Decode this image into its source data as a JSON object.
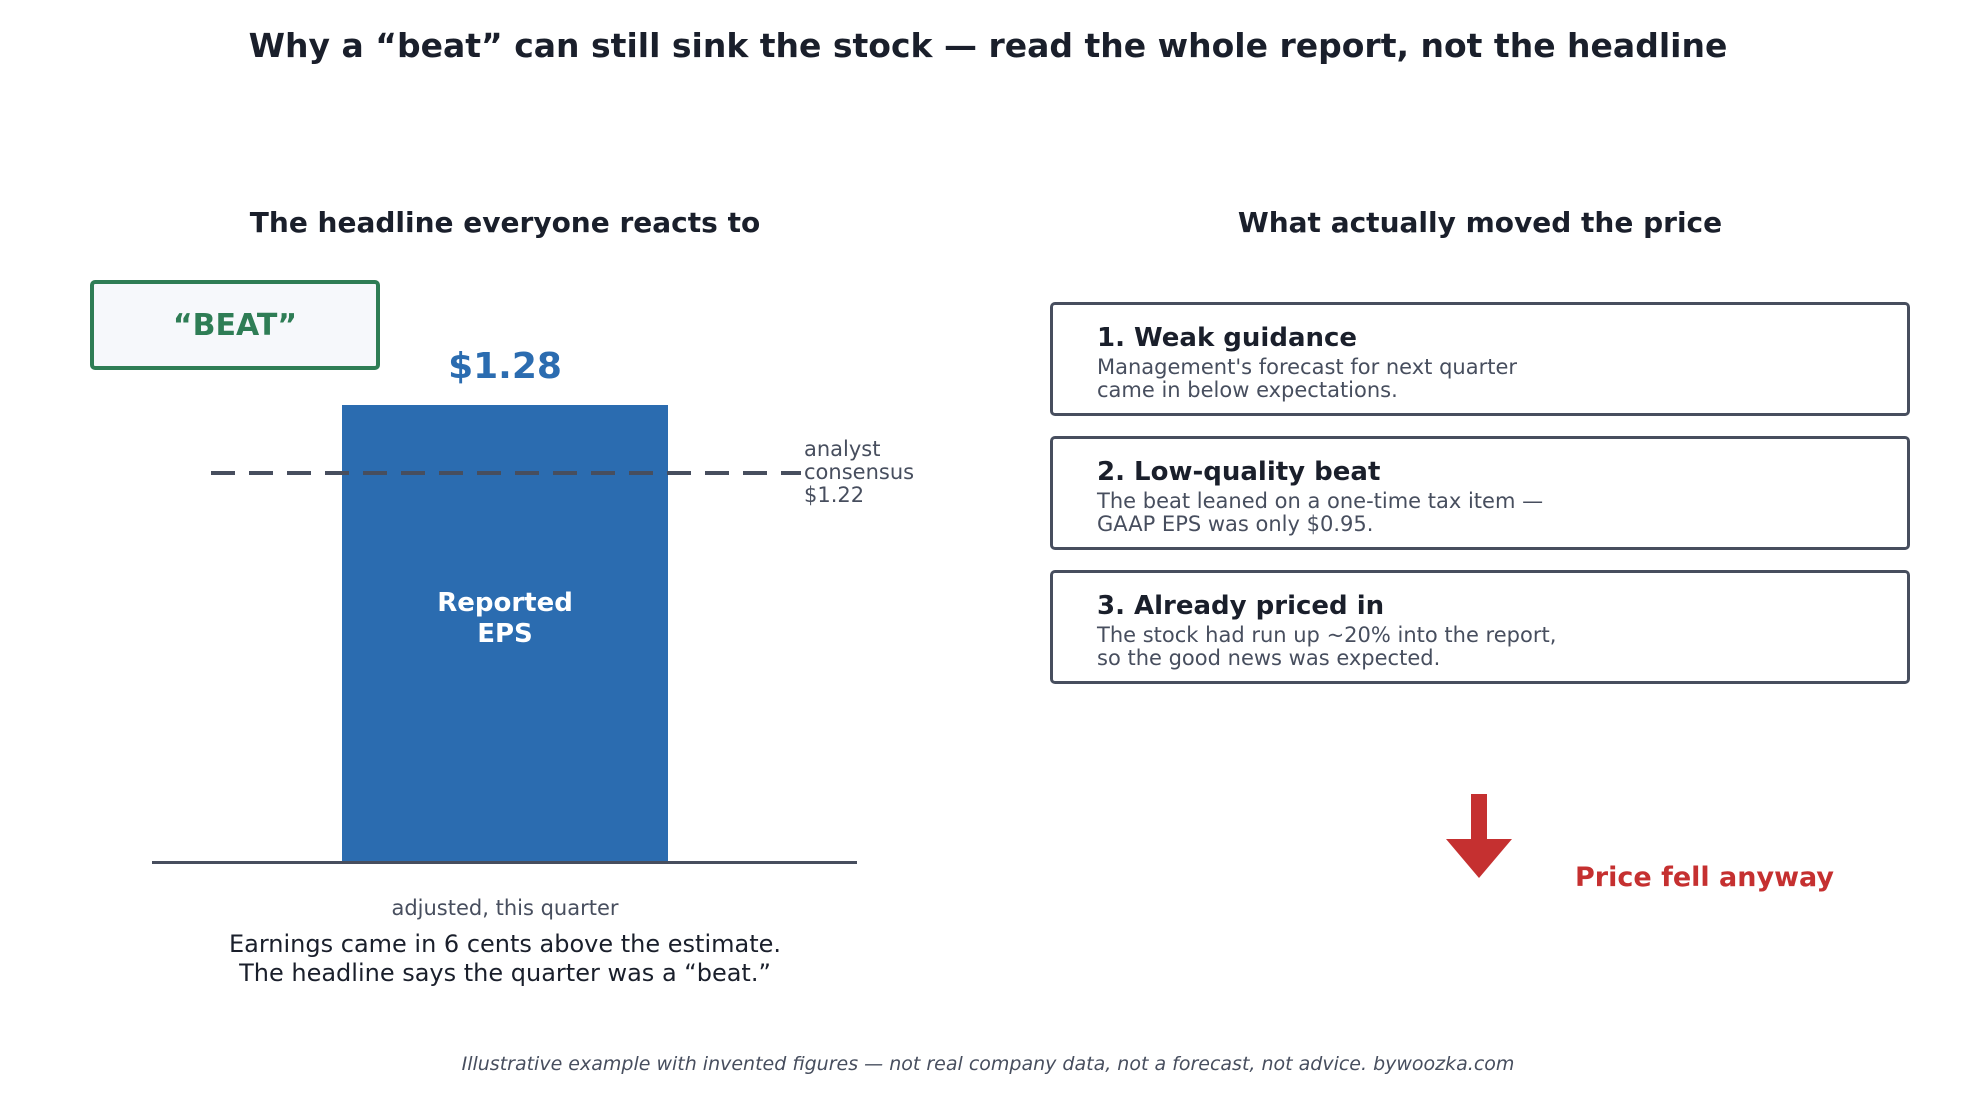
{
  "title": "Why a “beat” can still sink the stock — read the whole report, not the headline",
  "left_panel": {
    "title": "The headline everyone reacts to",
    "badge": "“BEAT”",
    "eps_value": "$1.28",
    "bar_label": "Reported EPS",
    "consensus_label": "analyst consensus $1.22",
    "bar_caption": "adjusted, this quarter",
    "summary_line_1": "Earnings came in 6 cents above the estimate.",
    "summary_line_2": "The headline says the quarter was a “beat.”"
  },
  "right_panel": {
    "title": "What actually moved the price",
    "reasons": [
      {
        "title": "1.  Weak guidance",
        "line_1": "Management's forecast for next quarter",
        "line_2": "came in below expectations."
      },
      {
        "title": "2.  Low-quality beat",
        "line_1": "The beat leaned on a one-time tax item —",
        "line_2": "GAAP EPS was only $0.95."
      },
      {
        "title": "3.  Already priced in",
        "line_1": "The stock had run up ~20% into the report,",
        "line_2": "so the good news was expected."
      }
    ],
    "outcome": "Price fell anyway"
  },
  "footer": "Illustrative example with invented figures — not real company data, not a forecast, not advice.   bywoozka.com",
  "colors": {
    "bar": "#2b6cb0",
    "beat": "#2e7d55",
    "down": "#c53030",
    "neutral": "#474e5e",
    "text": "#1a1f2b"
  },
  "icons": {
    "outcome": "down-arrow-icon"
  }
}
